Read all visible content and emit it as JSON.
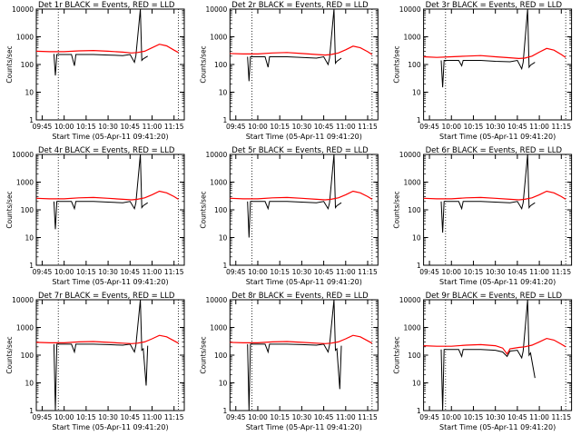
{
  "figure": {
    "xlabel": "Start Time (05-Apr-11 09:41:20)",
    "ylabel": "Counts/sec",
    "x_tick_labels": [
      "09:45",
      "10:00",
      "10:15",
      "10:30",
      "10:45",
      "11:00",
      "11:15"
    ],
    "y_tick_labels": [
      "1",
      "10",
      "100",
      "1000",
      "10000"
    ],
    "colors": {
      "events": "#000000",
      "lld": "#ff0000",
      "background": "#ffffff",
      "axes": "#000000"
    }
  },
  "chart_data": [
    {
      "type": "line",
      "title": "Det 1r BLACK = Events, RED = LLD",
      "xlabel": "Start Time (05-Apr-11 09:41:20)",
      "ylabel": "Counts/sec",
      "yscale": "log",
      "ylim": [
        1,
        10000
      ],
      "xlim": [
        "09:41",
        "11:22"
      ],
      "series": [
        {
          "name": "Events",
          "color": "#000000",
          "x": [
            "09:53",
            "09:54",
            "09:55",
            "10:00",
            "10:05",
            "10:07",
            "10:08",
            "10:15",
            "10:20",
            "10:30",
            "10:40",
            "10:45",
            "10:48",
            "10:49",
            "10:52",
            "10:53",
            "10:54",
            "10:57"
          ],
          "y": [
            240,
            40,
            230,
            230,
            230,
            90,
            230,
            230,
            230,
            220,
            210,
            230,
            120,
            210,
            10000,
            140,
            160,
            200
          ]
        },
        {
          "name": "LLD",
          "color": "#ff0000",
          "x": [
            "09:41",
            "09:50",
            "10:00",
            "10:10",
            "10:20",
            "10:30",
            "10:40",
            "10:46",
            "10:50",
            "10:55",
            "11:00",
            "11:05",
            "11:10",
            "11:15",
            "11:18"
          ],
          "y": [
            300,
            290,
            290,
            310,
            320,
            300,
            280,
            260,
            270,
            300,
            400,
            540,
            470,
            330,
            270
          ]
        }
      ]
    },
    {
      "type": "line",
      "title": "Det 2r BLACK = Events, RED = LLD",
      "xlabel": "Start Time (05-Apr-11 09:41:20)",
      "ylabel": "Counts/sec",
      "yscale": "log",
      "ylim": [
        1,
        10000
      ],
      "xlim": [
        "09:41",
        "11:22"
      ],
      "series": [
        {
          "name": "Events",
          "color": "#000000",
          "x": [
            "09:53",
            "09:54",
            "09:55",
            "10:00",
            "10:05",
            "10:07",
            "10:08",
            "10:15",
            "10:20",
            "10:30",
            "10:40",
            "10:45",
            "10:48",
            "10:49",
            "10:52",
            "10:53",
            "10:54",
            "10:57"
          ],
          "y": [
            190,
            25,
            190,
            190,
            190,
            80,
            190,
            190,
            190,
            180,
            170,
            190,
            100,
            170,
            10000,
            110,
            130,
            170
          ]
        },
        {
          "name": "LLD",
          "color": "#ff0000",
          "x": [
            "09:41",
            "09:50",
            "10:00",
            "10:10",
            "10:20",
            "10:30",
            "10:40",
            "10:46",
            "10:50",
            "10:55",
            "11:00",
            "11:05",
            "11:10",
            "11:15",
            "11:18"
          ],
          "y": [
            250,
            240,
            240,
            260,
            270,
            250,
            230,
            220,
            230,
            260,
            340,
            460,
            400,
            290,
            230
          ]
        }
      ]
    },
    {
      "type": "line",
      "title": "Det 3r BLACK = Events, RED = LLD",
      "xlabel": "Start Time (05-Apr-11 09:41:20)",
      "ylabel": "Counts/sec",
      "yscale": "log",
      "ylim": [
        1,
        10000
      ],
      "xlim": [
        "09:41",
        "11:22"
      ],
      "series": [
        {
          "name": "Events",
          "color": "#000000",
          "x": [
            "09:53",
            "09:54",
            "09:55",
            "10:00",
            "10:05",
            "10:07",
            "10:08",
            "10:15",
            "10:20",
            "10:30",
            "10:40",
            "10:45",
            "10:48",
            "10:49",
            "10:52",
            "10:53",
            "10:54",
            "10:57"
          ],
          "y": [
            140,
            15,
            140,
            140,
            140,
            90,
            140,
            140,
            140,
            130,
            125,
            140,
            70,
            120,
            10000,
            80,
            95,
            120
          ]
        },
        {
          "name": "LLD",
          "color": "#ff0000",
          "x": [
            "09:41",
            "09:50",
            "10:00",
            "10:10",
            "10:20",
            "10:30",
            "10:40",
            "10:46",
            "10:50",
            "10:55",
            "11:00",
            "11:05",
            "11:10",
            "11:15",
            "11:18"
          ],
          "y": [
            190,
            180,
            190,
            200,
            210,
            190,
            175,
            165,
            170,
            200,
            280,
            380,
            330,
            230,
            180
          ]
        }
      ]
    },
    {
      "type": "line",
      "title": "Det 4r BLACK = Events, RED = LLD",
      "xlabel": "Start Time (05-Apr-11 09:41:20)",
      "ylabel": "Counts/sec",
      "yscale": "log",
      "ylim": [
        1,
        10000
      ],
      "xlim": [
        "09:41",
        "11:22"
      ],
      "series": [
        {
          "name": "Events",
          "color": "#000000",
          "x": [
            "09:53",
            "09:54",
            "09:55",
            "10:00",
            "10:05",
            "10:07",
            "10:08",
            "10:15",
            "10:20",
            "10:30",
            "10:40",
            "10:45",
            "10:48",
            "10:49",
            "10:52",
            "10:53",
            "10:54",
            "10:57"
          ],
          "y": [
            200,
            20,
            200,
            200,
            200,
            110,
            200,
            200,
            200,
            190,
            180,
            200,
            110,
            180,
            10000,
            120,
            140,
            180
          ]
        },
        {
          "name": "LLD",
          "color": "#ff0000",
          "x": [
            "09:41",
            "09:50",
            "10:00",
            "10:10",
            "10:20",
            "10:30",
            "10:40",
            "10:46",
            "10:50",
            "10:55",
            "11:00",
            "11:05",
            "11:10",
            "11:15",
            "11:18"
          ],
          "y": [
            260,
            250,
            250,
            270,
            280,
            260,
            240,
            230,
            240,
            270,
            350,
            470,
            410,
            300,
            240
          ]
        }
      ]
    },
    {
      "type": "line",
      "title": "Det 5r BLACK = Events, RED = LLD",
      "xlabel": "Start Time (05-Apr-11 09:41:20)",
      "ylabel": "Counts/sec",
      "yscale": "log",
      "ylim": [
        1,
        10000
      ],
      "xlim": [
        "09:41",
        "11:22"
      ],
      "series": [
        {
          "name": "Events",
          "color": "#000000",
          "x": [
            "09:53",
            "09:54",
            "09:55",
            "10:00",
            "10:05",
            "10:07",
            "10:08",
            "10:15",
            "10:20",
            "10:30",
            "10:40",
            "10:45",
            "10:48",
            "10:49",
            "10:52",
            "10:53",
            "10:54",
            "10:57"
          ],
          "y": [
            200,
            10,
            200,
            200,
            200,
            110,
            200,
            200,
            200,
            190,
            180,
            200,
            110,
            180,
            10000,
            120,
            140,
            180
          ]
        },
        {
          "name": "LLD",
          "color": "#ff0000",
          "x": [
            "09:41",
            "09:50",
            "10:00",
            "10:10",
            "10:20",
            "10:30",
            "10:40",
            "10:46",
            "10:50",
            "10:55",
            "11:00",
            "11:05",
            "11:10",
            "11:15",
            "11:18"
          ],
          "y": [
            260,
            250,
            250,
            270,
            280,
            260,
            240,
            230,
            240,
            270,
            350,
            470,
            410,
            300,
            240
          ]
        }
      ]
    },
    {
      "type": "line",
      "title": "Det 6r BLACK = Events, RED = LLD",
      "xlabel": "Start Time (05-Apr-11 09:41:20)",
      "ylabel": "Counts/sec",
      "yscale": "log",
      "ylim": [
        1,
        10000
      ],
      "xlim": [
        "09:41",
        "11:22"
      ],
      "series": [
        {
          "name": "Events",
          "color": "#000000",
          "x": [
            "09:53",
            "09:54",
            "09:55",
            "10:00",
            "10:05",
            "10:07",
            "10:08",
            "10:15",
            "10:20",
            "10:30",
            "10:40",
            "10:45",
            "10:48",
            "10:49",
            "10:52",
            "10:53",
            "10:54",
            "10:57"
          ],
          "y": [
            200,
            15,
            200,
            200,
            200,
            110,
            200,
            200,
            200,
            190,
            180,
            200,
            110,
            180,
            10000,
            120,
            140,
            180
          ]
        },
        {
          "name": "LLD",
          "color": "#ff0000",
          "x": [
            "09:41",
            "09:50",
            "10:00",
            "10:10",
            "10:20",
            "10:30",
            "10:40",
            "10:46",
            "10:50",
            "10:55",
            "11:00",
            "11:05",
            "11:10",
            "11:15",
            "11:18"
          ],
          "y": [
            260,
            250,
            250,
            270,
            280,
            260,
            240,
            230,
            240,
            270,
            350,
            470,
            410,
            300,
            240
          ]
        }
      ]
    },
    {
      "type": "line",
      "title": "Det 7r BLACK = Events, RED = LLD",
      "xlabel": "Start Time (05-Apr-11 09:41:20)",
      "ylabel": "Counts/sec",
      "yscale": "log",
      "ylim": [
        1,
        10000
      ],
      "xlim": [
        "09:41",
        "11:22"
      ],
      "series": [
        {
          "name": "Events",
          "color": "#000000",
          "x": [
            "09:53",
            "09:54",
            "09:55",
            "10:00",
            "10:05",
            "10:07",
            "10:08",
            "10:15",
            "10:20",
            "10:30",
            "10:40",
            "10:45",
            "10:48",
            "10:49",
            "10:52",
            "10:53",
            "10:54",
            "10:56",
            "10:57"
          ],
          "y": [
            250,
            1,
            250,
            250,
            250,
            130,
            250,
            250,
            250,
            240,
            230,
            250,
            130,
            230,
            10000,
            150,
            170,
            8,
            220
          ]
        },
        {
          "name": "LLD",
          "color": "#ff0000",
          "x": [
            "09:41",
            "09:50",
            "10:00",
            "10:10",
            "10:20",
            "10:30",
            "10:40",
            "10:46",
            "10:50",
            "10:55",
            "11:00",
            "11:05",
            "11:10",
            "11:15",
            "11:18"
          ],
          "y": [
            290,
            280,
            280,
            300,
            310,
            290,
            270,
            260,
            270,
            300,
            390,
            520,
            460,
            330,
            270
          ]
        }
      ]
    },
    {
      "type": "line",
      "title": "Det 8r BLACK = Events, RED = LLD",
      "xlabel": "Start Time (05-Apr-11 09:41:20)",
      "ylabel": "Counts/sec",
      "yscale": "log",
      "ylim": [
        1,
        10000
      ],
      "xlim": [
        "09:41",
        "11:22"
      ],
      "series": [
        {
          "name": "Events",
          "color": "#000000",
          "x": [
            "09:53",
            "09:54",
            "09:55",
            "10:00",
            "10:05",
            "10:07",
            "10:08",
            "10:15",
            "10:20",
            "10:30",
            "10:40",
            "10:45",
            "10:48",
            "10:49",
            "10:52",
            "10:53",
            "10:54",
            "10:56",
            "10:57"
          ],
          "y": [
            250,
            1,
            250,
            250,
            250,
            130,
            250,
            250,
            250,
            240,
            230,
            250,
            130,
            230,
            10000,
            150,
            170,
            6,
            220
          ]
        },
        {
          "name": "LLD",
          "color": "#ff0000",
          "x": [
            "09:41",
            "09:50",
            "10:00",
            "10:10",
            "10:20",
            "10:30",
            "10:40",
            "10:46",
            "10:50",
            "10:55",
            "11:00",
            "11:05",
            "11:10",
            "11:15",
            "11:18"
          ],
          "y": [
            290,
            280,
            280,
            300,
            310,
            290,
            270,
            260,
            270,
            300,
            390,
            520,
            460,
            330,
            270
          ]
        }
      ]
    },
    {
      "type": "line",
      "title": "Det 9r BLACK = Events, RED = LLD",
      "xlabel": "Start Time (05-Apr-11 09:41:20)",
      "ylabel": "Counts/sec",
      "yscale": "log",
      "ylim": [
        1,
        10000
      ],
      "xlim": [
        "09:41",
        "11:22"
      ],
      "series": [
        {
          "name": "Events",
          "color": "#000000",
          "x": [
            "09:53",
            "09:54",
            "09:55",
            "10:00",
            "10:05",
            "10:07",
            "10:08",
            "10:15",
            "10:20",
            "10:30",
            "10:35",
            "10:38",
            "10:40",
            "10:45",
            "10:48",
            "10:49",
            "10:52",
            "10:53",
            "10:54",
            "10:57"
          ],
          "y": [
            160,
            1,
            160,
            160,
            160,
            90,
            160,
            160,
            160,
            150,
            130,
            90,
            140,
            150,
            80,
            140,
            10000,
            100,
            120,
            15
          ]
        },
        {
          "name": "LLD",
          "color": "#ff0000",
          "x": [
            "09:41",
            "09:50",
            "10:00",
            "10:10",
            "10:20",
            "10:30",
            "10:35",
            "10:38",
            "10:40",
            "10:46",
            "10:50",
            "10:55",
            "11:00",
            "11:05",
            "11:10",
            "11:15",
            "11:18"
          ],
          "y": [
            220,
            210,
            210,
            230,
            240,
            220,
            180,
            110,
            170,
            190,
            200,
            230,
            300,
            400,
            350,
            250,
            200
          ]
        }
      ]
    }
  ]
}
